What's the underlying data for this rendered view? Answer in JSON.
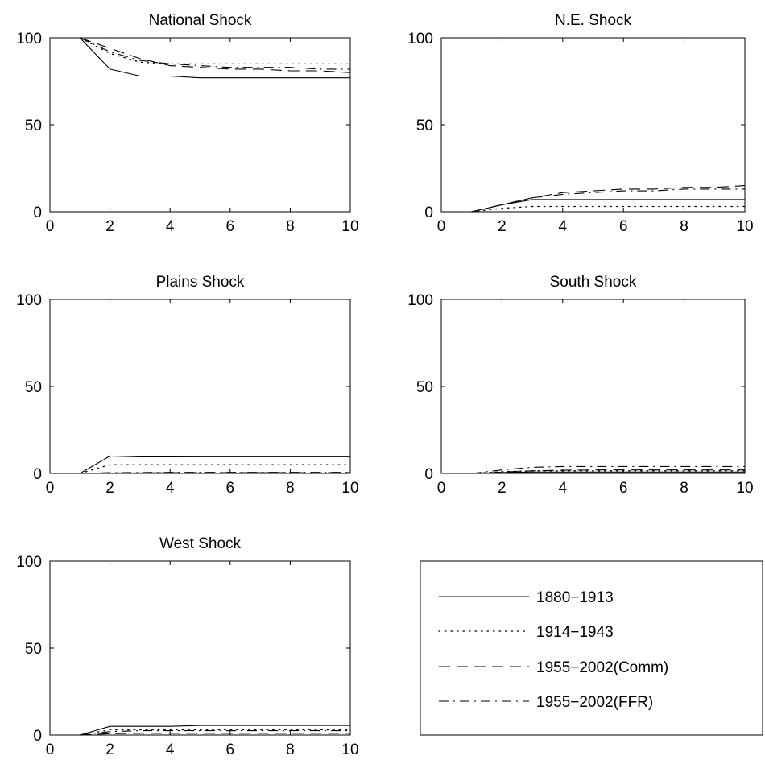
{
  "chart_data": [
    {
      "type": "line",
      "title": "National Shock",
      "xlim": [
        0,
        10
      ],
      "ylim": [
        0,
        100
      ],
      "xticks": [
        "0",
        "2",
        "4",
        "6",
        "8",
        "10"
      ],
      "yticks": [
        "0",
        "50",
        "100"
      ],
      "x": [
        1,
        2,
        3,
        4,
        5,
        6,
        7,
        8,
        9,
        10
      ],
      "series": [
        {
          "name": "1880−1913",
          "values": [
            100,
            82,
            78,
            78,
            77,
            77,
            77,
            77,
            77,
            77
          ]
        },
        {
          "name": "1914−1943",
          "values": [
            100,
            91,
            86,
            85,
            85,
            85,
            85,
            85,
            85,
            85
          ]
        },
        {
          "name": "1955−2002(Comm)",
          "values": [
            100,
            94,
            88,
            84,
            83,
            82,
            82,
            81,
            81,
            80
          ]
        },
        {
          "name": "1955−2002(FFR)",
          "values": [
            100,
            92,
            87,
            85,
            84,
            83,
            83,
            83,
            82,
            82
          ]
        }
      ]
    },
    {
      "type": "line",
      "title": "N.E. Shock",
      "xlim": [
        0,
        10
      ],
      "ylim": [
        0,
        100
      ],
      "xticks": [
        "0",
        "2",
        "4",
        "6",
        "8",
        "10"
      ],
      "yticks": [
        "0",
        "50",
        "100"
      ],
      "x": [
        1,
        2,
        3,
        4,
        5,
        6,
        7,
        8,
        9,
        10
      ],
      "series": [
        {
          "name": "1880−1913",
          "values": [
            0,
            4,
            7,
            7,
            7,
            7,
            7,
            7,
            7,
            7
          ]
        },
        {
          "name": "1914−1943",
          "values": [
            0,
            2,
            3,
            3,
            3,
            3,
            3,
            3,
            3,
            3
          ]
        },
        {
          "name": "1955−2002(Comm)",
          "values": [
            0,
            4,
            8,
            11,
            12,
            13,
            13,
            14,
            14,
            15
          ]
        },
        {
          "name": "1955−2002(FFR)",
          "values": [
            0,
            4,
            8,
            10,
            11,
            12,
            12,
            13,
            13,
            13
          ]
        }
      ]
    },
    {
      "type": "line",
      "title": "Plains Shock",
      "xlim": [
        0,
        10
      ],
      "ylim": [
        0,
        100
      ],
      "xticks": [
        "0",
        "2",
        "4",
        "6",
        "8",
        "10"
      ],
      "yticks": [
        "0",
        "50",
        "100"
      ],
      "x": [
        1,
        2,
        3,
        4,
        5,
        6,
        7,
        8,
        9,
        10
      ],
      "series": [
        {
          "name": "1880−1913",
          "values": [
            0,
            10,
            9.5,
            9.5,
            9.6,
            9.6,
            9.6,
            9.6,
            9.6,
            9.6
          ]
        },
        {
          "name": "1914−1943",
          "values": [
            0,
            5,
            5,
            5,
            5,
            5,
            5,
            5,
            5,
            5
          ]
        },
        {
          "name": "1955−2002(Comm)",
          "values": [
            0,
            0.3,
            0.3,
            0.4,
            0.4,
            0.4,
            0.4,
            0.4,
            0.4,
            0.4
          ]
        },
        {
          "name": "1955−2002(FFR)",
          "values": [
            0,
            0.4,
            0.5,
            0.6,
            0.6,
            0.6,
            0.6,
            0.6,
            0.6,
            0.6
          ]
        }
      ]
    },
    {
      "type": "line",
      "title": "South Shock",
      "xlim": [
        0,
        10
      ],
      "ylim": [
        0,
        100
      ],
      "xticks": [
        "0",
        "2",
        "4",
        "6",
        "8",
        "10"
      ],
      "yticks": [
        "0",
        "50",
        "100"
      ],
      "x": [
        1,
        2,
        3,
        4,
        5,
        6,
        7,
        8,
        9,
        10
      ],
      "series": [
        {
          "name": "1880−1913",
          "values": [
            0,
            0.5,
            0.8,
            0.8,
            0.8,
            0.8,
            0.8,
            0.8,
            0.8,
            0.8
          ]
        },
        {
          "name": "1914−1943",
          "values": [
            0,
            1,
            1.5,
            1.5,
            1.5,
            1.5,
            1.5,
            1.5,
            1.5,
            1.5
          ]
        },
        {
          "name": "1955−2002(Comm)",
          "values": [
            0,
            0.8,
            1.5,
            1.8,
            2,
            2,
            2,
            2,
            2,
            2
          ]
        },
        {
          "name": "1955−2002(FFR)",
          "values": [
            0,
            2,
            3.5,
            4,
            4,
            4,
            4,
            4,
            4,
            4
          ]
        }
      ]
    },
    {
      "type": "line",
      "title": "West Shock",
      "xlim": [
        0,
        10
      ],
      "ylim": [
        0,
        100
      ],
      "xticks": [
        "0",
        "2",
        "4",
        "6",
        "8",
        "10"
      ],
      "yticks": [
        "0",
        "50",
        "100"
      ],
      "x": [
        1,
        2,
        3,
        4,
        5,
        6,
        7,
        8,
        9,
        10
      ],
      "series": [
        {
          "name": "1880−1913",
          "values": [
            0,
            5,
            5,
            5,
            5.5,
            5.5,
            5.5,
            5.5,
            5.5,
            5.5
          ]
        },
        {
          "name": "1914−1943",
          "values": [
            0,
            3,
            3,
            3,
            3,
            3,
            3,
            3,
            3,
            3
          ]
        },
        {
          "name": "1955−2002(Comm)",
          "values": [
            0,
            0.8,
            1,
            1,
            1,
            1,
            1,
            1,
            1,
            1
          ]
        },
        {
          "name": "1955−2002(FFR)",
          "values": [
            0,
            2,
            2.5,
            2.5,
            2.5,
            2.5,
            2.5,
            2.5,
            2.5,
            2.5
          ]
        }
      ]
    }
  ],
  "legend": {
    "placement": "bottom-right",
    "entries": [
      {
        "label": "1880−1913",
        "style": "solid"
      },
      {
        "label": "1914−1943",
        "style": "dotted"
      },
      {
        "label": "1955−2002(Comm)",
        "style": "dashed"
      },
      {
        "label": "1955−2002(FFR)",
        "style": "dashdot"
      }
    ]
  },
  "colors": {
    "line": "#000000",
    "background": "#ffffff"
  }
}
